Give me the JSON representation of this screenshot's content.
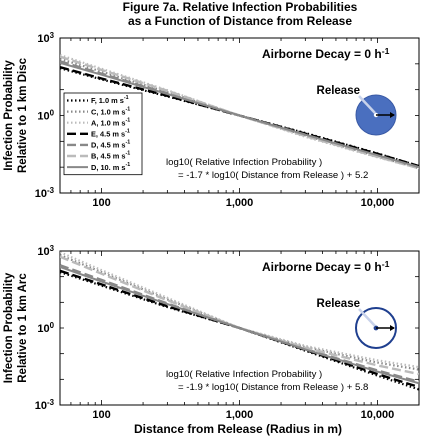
{
  "figure": {
    "title_line1": "Figure 7a. Relative Infection Probabilities",
    "title_line2": "as a Function of Distance from Release",
    "xlabel": "Distance from Release (Radius in m)"
  },
  "chart_data": [
    {
      "type": "line",
      "panel": "top",
      "xscale": "log",
      "yscale": "log",
      "xlim": [
        50,
        20000
      ],
      "ylim": [
        0.001,
        1000
      ],
      "xticks": [
        100,
        1000,
        10000
      ],
      "xtick_labels": [
        "100",
        "1,000",
        "10,000"
      ],
      "yticks": [
        0.001,
        1,
        1000
      ],
      "ylabel_line1": "Infection Probability",
      "ylabel_line2": "Relative to 1 km Disc",
      "annotation": "Airborne Decay = 0 h",
      "annotation_sup": "-1",
      "inset_label": "Release",
      "inset_style": "disc",
      "equation_line1": "log10( Relative Infection Probability )",
      "equation_line2": "= -1.7 * log10( Distance from Release ) + 5.2",
      "legend_position": "left",
      "series": [
        {
          "name": "F, 1.0 m s",
          "sup": "-1",
          "color": "#000000",
          "dash": "1.5,2.5",
          "width": 2.2,
          "x": [
            50,
            100,
            300,
            1000,
            3000,
            10000,
            20000
          ],
          "y": [
            68,
            25,
            5.5,
            1.0,
            0.21,
            0.034,
            0.011
          ]
        },
        {
          "name": "C, 1.0 m s",
          "sup": "-1",
          "color": "#888888",
          "dash": "1.5,2.5",
          "width": 2.2,
          "x": [
            50,
            100,
            300,
            1000,
            3000,
            10000,
            20000
          ],
          "y": [
            155,
            50,
            8.0,
            1.0,
            0.17,
            0.026,
            0.009
          ]
        },
        {
          "name": "A, 1.0 m s",
          "sup": "-1",
          "color": "#bbbbbb",
          "dash": "1.5,2.5",
          "width": 2.2,
          "x": [
            50,
            100,
            300,
            1000,
            3000,
            10000,
            20000
          ],
          "y": [
            220,
            65,
            9.5,
            1.0,
            0.15,
            0.024,
            0.009
          ]
        },
        {
          "name": "E, 4.5 m s",
          "sup": "-1",
          "color": "#000000",
          "dash": "9,4",
          "width": 2.4,
          "x": [
            50,
            100,
            300,
            1000,
            3000,
            10000,
            20000
          ],
          "y": [
            75,
            27,
            5.8,
            1.0,
            0.2,
            0.033,
            0.011
          ]
        },
        {
          "name": "D, 4.5 m s",
          "sup": "-1",
          "color": "#888888",
          "dash": "9,4",
          "width": 2.4,
          "x": [
            50,
            100,
            300,
            1000,
            3000,
            10000,
            20000
          ],
          "y": [
            125,
            42,
            7.2,
            1.0,
            0.18,
            0.028,
            0.01
          ]
        },
        {
          "name": "B, 4.5 m s",
          "sup": "-1",
          "color": "#bbbbbb",
          "dash": "9,4",
          "width": 2.4,
          "x": [
            50,
            100,
            300,
            1000,
            3000,
            10000,
            20000
          ],
          "y": [
            190,
            58,
            9.0,
            1.0,
            0.16,
            0.025,
            0.009
          ]
        },
        {
          "name": "D, 10. m s",
          "sup": "-1",
          "color": "#888888",
          "dash": "",
          "width": 2.0,
          "x": [
            50,
            100,
            300,
            1000,
            3000,
            10000,
            20000
          ],
          "y": [
            110,
            38,
            6.8,
            1.0,
            0.18,
            0.029,
            0.01
          ]
        }
      ]
    },
    {
      "type": "line",
      "panel": "bottom",
      "xscale": "log",
      "yscale": "log",
      "xlim": [
        50,
        20000
      ],
      "ylim": [
        0.001,
        1000
      ],
      "xticks": [
        100,
        1000,
        10000
      ],
      "xtick_labels": [
        "100",
        "1,000",
        "10,000"
      ],
      "yticks": [
        0.001,
        1,
        1000
      ],
      "ylabel_line1": "Infection Probability",
      "ylabel_line2": "Relative to 1 km Arc",
      "annotation": "Airborne Decay = 0 h",
      "annotation_sup": "-1",
      "inset_label": "Release",
      "inset_style": "ring",
      "equation_line1": "log10( Relative Infection Probability )",
      "equation_line2": "= -1.9 * log10( Distance from Release ) + 5.8",
      "series": [
        {
          "name": "F, 1.0 m s",
          "sup": "-1",
          "color": "#000000",
          "dash": "1.5,2.5",
          "width": 2.2,
          "x": [
            50,
            100,
            300,
            1000,
            3000,
            10000,
            20000
          ],
          "y": [
            150,
            45,
            6.5,
            1.0,
            0.13,
            0.014,
            0.004
          ]
        },
        {
          "name": "C, 1.0 m s",
          "sup": "-1",
          "color": "#888888",
          "dash": "1.5,2.5",
          "width": 2.2,
          "x": [
            50,
            100,
            300,
            1000,
            3000,
            10000,
            20000
          ],
          "y": [
            700,
            150,
            13,
            1.0,
            0.18,
            0.045,
            0.024
          ]
        },
        {
          "name": "A, 1.0 m s",
          "sup": "-1",
          "color": "#bbbbbb",
          "dash": "1.5,2.5",
          "width": 2.2,
          "x": [
            50,
            100,
            300,
            1000,
            3000,
            10000,
            20000
          ],
          "y": [
            900,
            180,
            15,
            1.0,
            0.2,
            0.055,
            0.03
          ]
        },
        {
          "name": "E, 4.5 m s",
          "sup": "-1",
          "color": "#000000",
          "dash": "9,4",
          "width": 2.4,
          "x": [
            50,
            100,
            300,
            1000,
            3000,
            10000,
            20000
          ],
          "y": [
            170,
            50,
            7.0,
            1.0,
            0.14,
            0.016,
            0.005
          ]
        },
        {
          "name": "D, 4.5 m s",
          "sup": "-1",
          "color": "#888888",
          "dash": "9,4",
          "width": 2.4,
          "x": [
            50,
            100,
            300,
            1000,
            3000,
            10000,
            20000
          ],
          "y": [
            280,
            75,
            9.0,
            1.0,
            0.15,
            0.022,
            0.008
          ]
        },
        {
          "name": "B, 4.5 m s",
          "sup": "-1",
          "color": "#bbbbbb",
          "dash": "9,4",
          "width": 2.4,
          "x": [
            50,
            100,
            300,
            1000,
            3000,
            10000,
            20000
          ],
          "y": [
            600,
            130,
            12,
            1.0,
            0.17,
            0.035,
            0.016
          ]
        },
        {
          "name": "D, 10. m s",
          "sup": "-1",
          "color": "#888888",
          "dash": "",
          "width": 2.0,
          "x": [
            50,
            100,
            300,
            1000,
            3000,
            10000,
            20000
          ],
          "y": [
            240,
            65,
            8.5,
            1.0,
            0.145,
            0.02,
            0.007
          ]
        }
      ]
    }
  ]
}
